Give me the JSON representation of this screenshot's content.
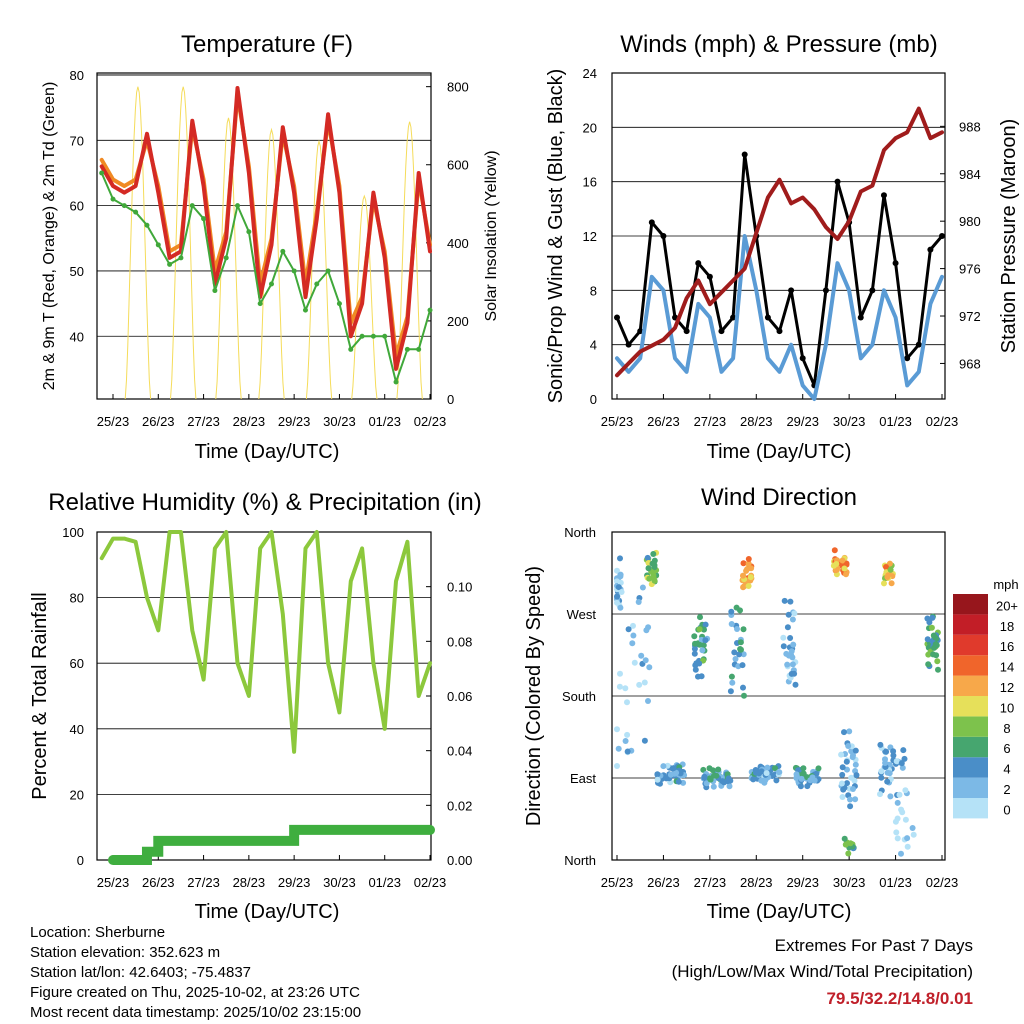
{
  "footer": {
    "location": "Location: Sherburne",
    "elevation": "Station elevation: 352.623 m",
    "latlon": "Station lat/lon: 42.6403; -75.4837",
    "created": "Figure created on Thu, 2025-10-02, at 23:26 UTC",
    "timestamp": "Most recent data timestamp: 2025/10/02 23:15:00",
    "extremes_title": "Extremes For Past 7 Days",
    "extremes_sub": "(High/Low/Max Wind/Total Precipitation)",
    "extremes_value": "79.5/32.2/14.8/0.01",
    "extremes_color": "#c0202a"
  },
  "chart_data": [
    {
      "type": "line",
      "title": "Temperature (F)",
      "xlabel": "Time (Day/UTC)",
      "ylabel": "2m & 9m T (Red, Orange) & 2m Td (Green)",
      "ylabel_right": "Solar Insolation (Yellow)",
      "x_ticks": [
        "25/23",
        "26/23",
        "27/23",
        "28/23",
        "29/23",
        "30/23",
        "01/23",
        "02/23"
      ],
      "y_ticks": [
        "40",
        "50",
        "60",
        "70",
        "80"
      ],
      "y_right_ticks": [
        "0",
        "200",
        "400",
        "600",
        "800"
      ],
      "ylim": [
        30.4,
        80.3
      ],
      "ylim_right": [
        0,
        835
      ],
      "x_days": [
        -0.25,
        0,
        0.25,
        0.5,
        0.75,
        1,
        1.25,
        1.5,
        1.75,
        2,
        2.25,
        2.5,
        2.75,
        3,
        3.25,
        3.5,
        3.75,
        4,
        4.25,
        4.5,
        4.75,
        5,
        5.25,
        5.5,
        5.75,
        6,
        6.25,
        6.5,
        6.75,
        7
      ],
      "series": [
        {
          "name": "9m T",
          "color": "#f08a24",
          "values": [
            67,
            64,
            63,
            64,
            70,
            63,
            53,
            54,
            72,
            64,
            50,
            56,
            77,
            66,
            48,
            55,
            71,
            63,
            48,
            59,
            73,
            63,
            42,
            46,
            61,
            53,
            37,
            43,
            64,
            54
          ]
        },
        {
          "name": "2m T",
          "color": "#d42a24",
          "values": [
            66,
            63,
            62,
            63,
            71,
            62,
            52,
            53,
            73,
            63,
            48,
            55,
            78,
            65,
            46,
            54,
            72,
            62,
            46,
            58,
            74,
            62,
            40,
            45,
            62,
            52,
            35,
            42,
            65,
            53
          ]
        },
        {
          "name": "2m Td",
          "color": "#40a83a",
          "values": [
            65,
            61,
            60,
            59,
            57,
            54,
            51,
            52,
            60,
            58,
            47,
            52,
            60,
            56,
            45,
            48,
            53,
            50,
            44,
            48,
            50,
            45,
            38,
            40,
            40,
            40,
            33,
            38,
            38,
            44
          ]
        }
      ],
      "solar": {
        "name": "Solar Insolation",
        "color": "#f5dc5a",
        "peaks": [
          {
            "day": 0.55,
            "value": 800
          },
          {
            "day": 1.55,
            "value": 800
          },
          {
            "day": 2.55,
            "value": 720
          },
          {
            "day": 3.5,
            "value": 690
          },
          {
            "day": 4.55,
            "value": 660
          },
          {
            "day": 5.55,
            "value": 520
          },
          {
            "day": 6.55,
            "value": 710
          }
        ]
      }
    },
    {
      "type": "line",
      "title": "Winds (mph) & Pressure (mb)",
      "xlabel": "Time (Day/UTC)",
      "ylabel": "Sonic/Prop Wind & Gust (Blue, Black)",
      "ylabel_right": "Station Pressure (Maroon)",
      "x_ticks": [
        "25/23",
        "26/23",
        "27/23",
        "28/23",
        "29/23",
        "30/23",
        "01/23",
        "02/23"
      ],
      "y_ticks": [
        "0",
        "4",
        "8",
        "12",
        "16",
        "20",
        "24"
      ],
      "y_right_ticks": [
        "968",
        "972",
        "976",
        "980",
        "984",
        "988"
      ],
      "ylim": [
        0,
        24
      ],
      "ylim_right": [
        965,
        992.5
      ],
      "x_days": [
        -0.25,
        0,
        0.25,
        0.5,
        0.75,
        1,
        1.25,
        1.5,
        1.75,
        2,
        2.25,
        2.5,
        2.75,
        3,
        3.25,
        3.5,
        3.75,
        4,
        4.25,
        4.5,
        4.75,
        5,
        5.25,
        5.5,
        5.75,
        6,
        6.25,
        6.5,
        6.75,
        7
      ],
      "series": [
        {
          "name": "Gust",
          "color": "#000000",
          "values": [
            10,
            6,
            4,
            5,
            13,
            12,
            6,
            5,
            10,
            9,
            5,
            6,
            18,
            12,
            6,
            5,
            8,
            3,
            1,
            8,
            16,
            13,
            6,
            8,
            15,
            10,
            3,
            4,
            11,
            12
          ]
        },
        {
          "name": "Sonic/Prop Wind",
          "color": "#5a9bd5",
          "values": [
            6,
            3,
            2,
            3,
            9,
            8,
            3,
            2,
            7,
            6,
            2,
            3,
            12,
            8,
            3,
            2,
            4,
            1,
            0,
            4,
            10,
            8,
            3,
            4,
            8,
            6,
            1,
            2,
            7,
            9
          ]
        },
        {
          "name": "Station Pressure",
          "color": "#a01c1c",
          "axis": "right",
          "values": [
            966,
            967,
            968,
            969,
            969.5,
            970,
            971,
            973.5,
            975,
            973,
            974,
            975,
            976,
            979,
            982,
            983.5,
            981.5,
            982,
            981,
            979.5,
            978.5,
            980,
            982.5,
            983,
            986,
            987,
            987.5,
            989.5,
            987,
            987.5
          ]
        }
      ]
    },
    {
      "type": "line",
      "title": "Relative Humidity (%) & Precipitation (in)",
      "xlabel": "Time (Day/UTC)",
      "ylabel": "Percent & Total Rainfall",
      "x_ticks": [
        "25/23",
        "26/23",
        "27/23",
        "28/23",
        "29/23",
        "30/23",
        "01/23",
        "02/23"
      ],
      "y_ticks": [
        "0",
        "20",
        "40",
        "60",
        "80",
        "100"
      ],
      "y_right_ticks": [
        "0.00",
        "0.02",
        "0.04",
        "0.06",
        "0.08",
        "0.10"
      ],
      "ylim": [
        0,
        100
      ],
      "ylim_right": [
        0,
        0.12
      ],
      "x_days": [
        -0.25,
        0,
        0.25,
        0.5,
        0.75,
        1,
        1.25,
        1.5,
        1.75,
        2,
        2.25,
        2.5,
        2.75,
        3,
        3.25,
        3.5,
        3.75,
        4,
        4.25,
        4.5,
        4.75,
        5,
        5.25,
        5.5,
        5.75,
        6,
        6.25,
        6.5,
        6.75,
        7
      ],
      "series": [
        {
          "name": "Relative Humidity",
          "color": "#8cc83c",
          "values": [
            92,
            98,
            98,
            97,
            80,
            70,
            100,
            100,
            70,
            55,
            95,
            100,
            60,
            50,
            95,
            100,
            75,
            33,
            95,
            100,
            60,
            45,
            85,
            95,
            60,
            40,
            85,
            97,
            50,
            60
          ]
        },
        {
          "name": "Total Precipitation",
          "color": "#3fae3f",
          "axis": "right",
          "values": [
            0,
            0,
            0,
            0,
            0.003,
            0.007,
            0.007,
            0.007,
            0.007,
            0.007,
            0.007,
            0.007,
            0.007,
            0.007,
            0.007,
            0.007,
            0.007,
            0.011,
            0.011,
            0.011,
            0.011,
            0.011,
            0.011,
            0.011,
            0.011,
            0.011,
            0.011,
            0.011,
            0.011,
            0.011
          ]
        }
      ]
    },
    {
      "type": "scatter",
      "title": "Wind Direction",
      "xlabel": "Time (Day/UTC)",
      "ylabel": "Direction (Colored By Speed)",
      "x_ticks": [
        "25/23",
        "26/23",
        "27/23",
        "28/23",
        "29/23",
        "30/23",
        "01/23",
        "02/23"
      ],
      "y_ticks": [
        "North",
        "East",
        "South",
        "West",
        "North"
      ],
      "ylim": [
        0,
        360
      ],
      "colorbar": {
        "title": "mph",
        "labels": [
          "0",
          "2",
          "4",
          "6",
          "8",
          "10",
          "12",
          "14",
          "16",
          "18",
          "20+"
        ],
        "colors": [
          "#b5e2f7",
          "#7cb9e6",
          "#4a8ec8",
          "#46a66f",
          "#7dc24c",
          "#e6e05a",
          "#f7a84a",
          "#f0652b",
          "#e03a2c",
          "#c21e27",
          "#97161c"
        ]
      },
      "clusters": [
        {
          "day": -0.05,
          "day_spread": 0.15,
          "dir": 300,
          "dir_spread": 40,
          "speed": 3,
          "n": 25
        },
        {
          "day": 0.75,
          "day_spread": 0.12,
          "dir": 320,
          "dir_spread": 20,
          "speed": 8,
          "n": 25
        },
        {
          "day": 0.3,
          "day_spread": 0.4,
          "dir": 200,
          "dir_spread": 120,
          "speed": 2,
          "n": 30
        },
        {
          "day": 1.15,
          "day_spread": 0.3,
          "dir": 95,
          "dir_spread": 12,
          "speed": 4,
          "n": 45
        },
        {
          "day": 1.8,
          "day_spread": 0.15,
          "dir": 230,
          "dir_spread": 45,
          "speed": 6,
          "n": 30
        },
        {
          "day": 2.15,
          "day_spread": 0.3,
          "dir": 90,
          "dir_spread": 12,
          "speed": 5,
          "n": 45
        },
        {
          "day": 2.8,
          "day_spread": 0.1,
          "dir": 315,
          "dir_spread": 18,
          "speed": 13,
          "n": 25
        },
        {
          "day": 2.6,
          "day_spread": 0.15,
          "dir": 230,
          "dir_spread": 60,
          "speed": 5,
          "n": 25
        },
        {
          "day": 3.2,
          "day_spread": 0.3,
          "dir": 95,
          "dir_spread": 12,
          "speed": 4,
          "n": 40
        },
        {
          "day": 3.7,
          "day_spread": 0.15,
          "dir": 230,
          "dir_spread": 70,
          "speed": 3,
          "n": 30
        },
        {
          "day": 4.1,
          "day_spread": 0.25,
          "dir": 92,
          "dir_spread": 12,
          "speed": 5,
          "n": 40
        },
        {
          "day": 4.8,
          "day_spread": 0.15,
          "dir": 325,
          "dir_spread": 18,
          "speed": 13,
          "n": 30
        },
        {
          "day": 5.0,
          "day_spread": 0.2,
          "dir": 90,
          "dir_spread": 60,
          "speed": 3,
          "n": 35
        },
        {
          "day": 5.0,
          "day_spread": 0.1,
          "dir": 15,
          "dir_spread": 15,
          "speed": 7,
          "n": 12
        },
        {
          "day": 5.85,
          "day_spread": 0.1,
          "dir": 315,
          "dir_spread": 15,
          "speed": 12,
          "n": 20
        },
        {
          "day": 5.9,
          "day_spread": 0.3,
          "dir": 100,
          "dir_spread": 40,
          "speed": 3,
          "n": 40
        },
        {
          "day": 6.2,
          "day_spread": 0.2,
          "dir": 40,
          "dir_spread": 40,
          "speed": 2,
          "n": 15
        },
        {
          "day": 6.8,
          "day_spread": 0.12,
          "dir": 240,
          "dir_spread": 35,
          "speed": 7,
          "n": 35
        }
      ]
    }
  ]
}
